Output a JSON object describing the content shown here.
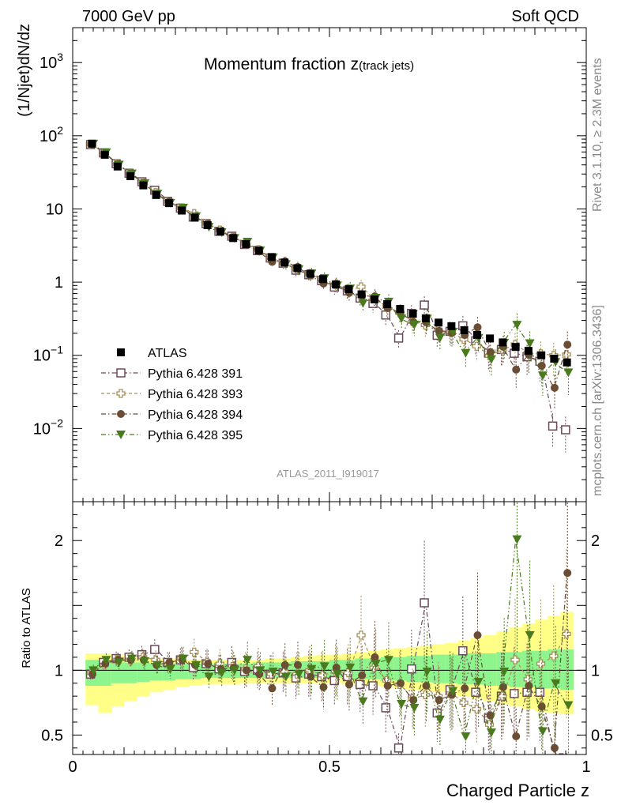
{
  "header": {
    "left": "7000 GeV pp",
    "right": "Soft QCD"
  },
  "side_labels": {
    "rivet": "Rivet 3.1.10, ≥ 2.3M events",
    "mcplots": "mcplots.cern.ch [arXiv:1306.3436]"
  },
  "chart_data": {
    "type": "scatter",
    "title": "Momentum fraction z",
    "title_sub": "(track jets)",
    "analysis_id": "ATLAS_2011_I919017",
    "xlabel": "Charged Particle z",
    "ylabel": "(1/Njet)dN/dz",
    "ratio_ylabel": "Ratio to ATLAS",
    "xlim": [
      0,
      1
    ],
    "ylim": [
      0.001,
      3000
    ],
    "yscale": "log",
    "ratio_ylim": [
      0.35,
      2.3
    ],
    "xticks": [
      "0",
      "0.5",
      "1"
    ],
    "yticks": [
      "10^-2",
      "10^-1",
      "1",
      "10",
      "10^2",
      "10^3"
    ],
    "ratio_yticks": [
      "0.5",
      "1",
      "2"
    ],
    "legend_position": "lower-left",
    "x": [
      0.0375,
      0.0625,
      0.0875,
      0.1125,
      0.1375,
      0.1625,
      0.1875,
      0.2125,
      0.2375,
      0.2625,
      0.2875,
      0.3125,
      0.3375,
      0.3625,
      0.3875,
      0.4125,
      0.4375,
      0.4625,
      0.4875,
      0.5125,
      0.5375,
      0.5625,
      0.5875,
      0.6125,
      0.6375,
      0.6625,
      0.6875,
      0.7125,
      0.7375,
      0.7625,
      0.7875,
      0.8125,
      0.8375,
      0.8625,
      0.8875,
      0.9125,
      0.9375,
      0.9625
    ],
    "data": {
      "name": "ATLAS",
      "values": [
        78,
        55,
        38,
        28,
        21,
        15.5,
        12,
        9.5,
        7.6,
        6.0,
        4.9,
        4.0,
        3.3,
        2.7,
        2.2,
        1.85,
        1.55,
        1.3,
        1.1,
        0.93,
        0.8,
        0.68,
        0.58,
        0.5,
        0.43,
        0.37,
        0.32,
        0.28,
        0.25,
        0.22,
        0.19,
        0.17,
        0.15,
        0.13,
        0.115,
        0.1,
        0.09,
        0.08
      ],
      "band_inner": [
        [
          0.88,
          1.08
        ],
        [
          0.88,
          1.08
        ],
        [
          0.9,
          1.06
        ],
        [
          0.9,
          1.06
        ],
        [
          0.91,
          1.06
        ],
        [
          0.92,
          1.05
        ],
        [
          0.92,
          1.05
        ],
        [
          0.93,
          1.05
        ],
        [
          0.93,
          1.05
        ],
        [
          0.94,
          1.05
        ],
        [
          0.94,
          1.05
        ],
        [
          0.94,
          1.05
        ],
        [
          0.94,
          1.05
        ],
        [
          0.94,
          1.06
        ],
        [
          0.94,
          1.06
        ],
        [
          0.94,
          1.06
        ],
        [
          0.94,
          1.07
        ],
        [
          0.94,
          1.07
        ],
        [
          0.94,
          1.07
        ],
        [
          0.94,
          1.08
        ],
        [
          0.93,
          1.08
        ],
        [
          0.93,
          1.09
        ],
        [
          0.93,
          1.09
        ],
        [
          0.92,
          1.1
        ],
        [
          0.92,
          1.1
        ],
        [
          0.91,
          1.11
        ],
        [
          0.91,
          1.11
        ],
        [
          0.9,
          1.12
        ],
        [
          0.9,
          1.12
        ],
        [
          0.89,
          1.13
        ],
        [
          0.89,
          1.13
        ],
        [
          0.88,
          1.13
        ],
        [
          0.88,
          1.14
        ],
        [
          0.87,
          1.14
        ],
        [
          0.87,
          1.15
        ],
        [
          0.86,
          1.15
        ],
        [
          0.86,
          1.16
        ],
        [
          0.85,
          1.16
        ]
      ],
      "band_outer": [
        [
          0.73,
          1.13
        ],
        [
          0.67,
          1.13
        ],
        [
          0.72,
          1.12
        ],
        [
          0.76,
          1.11
        ],
        [
          0.8,
          1.1
        ],
        [
          0.83,
          1.09
        ],
        [
          0.85,
          1.09
        ],
        [
          0.87,
          1.08
        ],
        [
          0.88,
          1.08
        ],
        [
          0.89,
          1.08
        ],
        [
          0.89,
          1.08
        ],
        [
          0.89,
          1.08
        ],
        [
          0.9,
          1.08
        ],
        [
          0.9,
          1.08
        ],
        [
          0.9,
          1.09
        ],
        [
          0.9,
          1.09
        ],
        [
          0.9,
          1.1
        ],
        [
          0.9,
          1.11
        ],
        [
          0.9,
          1.12
        ],
        [
          0.9,
          1.12
        ],
        [
          0.89,
          1.13
        ],
        [
          0.89,
          1.14
        ],
        [
          0.88,
          1.15
        ],
        [
          0.87,
          1.16
        ],
        [
          0.86,
          1.17
        ],
        [
          0.85,
          1.18
        ],
        [
          0.84,
          1.19
        ],
        [
          0.83,
          1.2
        ],
        [
          0.81,
          1.21
        ],
        [
          0.8,
          1.23
        ],
        [
          0.78,
          1.25
        ],
        [
          0.76,
          1.27
        ],
        [
          0.74,
          1.3
        ],
        [
          0.72,
          1.33
        ],
        [
          0.7,
          1.36
        ],
        [
          0.68,
          1.39
        ],
        [
          0.67,
          1.42
        ],
        [
          0.66,
          1.45
        ]
      ]
    },
    "series": [
      {
        "name": "Pythia 6.428 391",
        "color": "#6b4a5a",
        "marker": "open-square",
        "line": "dash-dot",
        "ratio": [
          0.97,
          1.06,
          1.09,
          1.1,
          1.12,
          1.16,
          1.06,
          1.08,
          1.02,
          1.05,
          1.01,
          1.06,
          0.99,
          1.0,
          0.97,
          0.98,
          0.94,
          0.97,
          0.95,
          0.92,
          0.95,
          0.89,
          0.88,
          0.71,
          0.4,
          1.01,
          1.52,
          0.67,
          0.85,
          1.15,
          0.83,
          0.63,
          0.8,
          0.82,
          0.83,
          0.83,
          0.12,
          0.12
        ]
      },
      {
        "name": "Pythia 6.428 393",
        "color": "#a8905a",
        "marker": "open-cross",
        "line": "dash",
        "ratio": [
          0.98,
          1.04,
          1.08,
          1.08,
          1.1,
          1.08,
          1.05,
          1.09,
          1.14,
          1.06,
          1.05,
          1.03,
          1.01,
          1.03,
          0.97,
          0.99,
          0.97,
          1.0,
          0.96,
          0.99,
          0.98,
          1.27,
          1.02,
          0.92,
          0.89,
          0.78,
          0.81,
          0.8,
          0.82,
          0.75,
          0.7,
          0.58,
          0.8,
          1.08,
          0.93,
          1.05,
          1.11,
          1.28
        ]
      },
      {
        "name": "Pythia 6.428 394",
        "color": "#6b4c35",
        "marker": "filled-circle",
        "line": "dash-dot",
        "ratio": [
          0.97,
          1.05,
          1.08,
          1.08,
          1.08,
          1.04,
          1.06,
          1.08,
          1.04,
          1.05,
          1.01,
          1.02,
          1.0,
          0.97,
          0.86,
          1.04,
          1.04,
          0.95,
          0.87,
          1.02,
          0.89,
          0.96,
          1.1,
          0.88,
          0.9,
          0.77,
          0.88,
          0.77,
          0.81,
          0.86,
          1.27,
          0.65,
          0.87,
          0.49,
          0.88,
          0.72,
          0.4,
          1.75
        ]
      },
      {
        "name": "Pythia 6.428 395",
        "color": "#4a7a1e",
        "marker": "filled-triangle-down",
        "line": "dash-dot-dot",
        "ratio": [
          1.0,
          1.08,
          1.06,
          1.09,
          1.07,
          1.04,
          1.01,
          1.09,
          1.04,
          0.95,
          0.98,
          1.0,
          1.08,
          1.0,
          0.99,
          0.95,
          0.97,
          1.01,
          1.03,
          0.97,
          1.02,
          0.76,
          1.05,
          1.08,
          0.74,
          0.71,
          0.99,
          0.62,
          0.84,
          0.49,
          0.91,
          0.52,
          0.99,
          2.01,
          1.27,
          0.53,
          0.9,
          0.73
        ]
      }
    ]
  }
}
